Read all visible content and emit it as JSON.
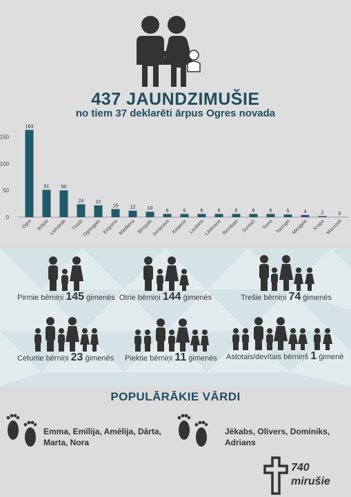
{
  "header": {
    "title": "437 JAUNDZIMUŠIE",
    "subtitle": "no tiem 37 deklarēti ārpus Ogres novada"
  },
  "colors": {
    "bar": "#1f5a6b",
    "heading": "#1f4e5f",
    "icon": "#333333"
  },
  "chart_data": {
    "type": "bar",
    "categories": [
      "Ogre",
      "Ikšķile",
      "Lielvārde",
      "Tīnūži",
      "Ogresgals",
      "Ķeguma",
      "Madliena",
      "Birzgale",
      "Jumprava",
      "Ķeipene",
      "Laubere",
      "Lēdmane",
      "Rembate",
      "Suntaži",
      "Tome",
      "Taurupe",
      "Meņģele",
      "Krape",
      "Mazozoli"
    ],
    "values": [
      163,
      51,
      50,
      24,
      22,
      15,
      12,
      10,
      6,
      6,
      6,
      6,
      6,
      6,
      6,
      5,
      4,
      2,
      0
    ],
    "yticks": [
      "0",
      "50",
      "100",
      "150"
    ],
    "ylim": [
      0,
      170
    ],
    "grid": false,
    "xlabel": "",
    "ylabel": ""
  },
  "families": [
    {
      "prefix": "Pirmie bērniņi",
      "count": "145",
      "suffix": "ģimenēs"
    },
    {
      "prefix": "Otrie bērniņi",
      "count": "144",
      "suffix": "ģimenēs"
    },
    {
      "prefix": "Trešie bērniņi",
      "count": "74",
      "suffix": "ģimenēs"
    },
    {
      "prefix": "Ceturtie bērniņi",
      "count": "23",
      "suffix": "ģimenēs"
    },
    {
      "prefix": "Piektie bērniņi",
      "count": "11",
      "suffix": "ģimenēs"
    },
    {
      "prefix": "Astotais/devītais bērniņš",
      "count": "1",
      "suffix": "ģimenē"
    }
  ],
  "names": {
    "title": "POPULĀRĀKIE VĀRDI",
    "girls_line1": "Emma, Emīlija, Amēlija, Dārta,",
    "girls_line2": "Marta, Nora",
    "boys_line1": "Jēkabs, Olivers, Dominiks,",
    "boys_line2": "Adrians"
  },
  "deaths": {
    "count": "740",
    "label": "mirušie"
  }
}
